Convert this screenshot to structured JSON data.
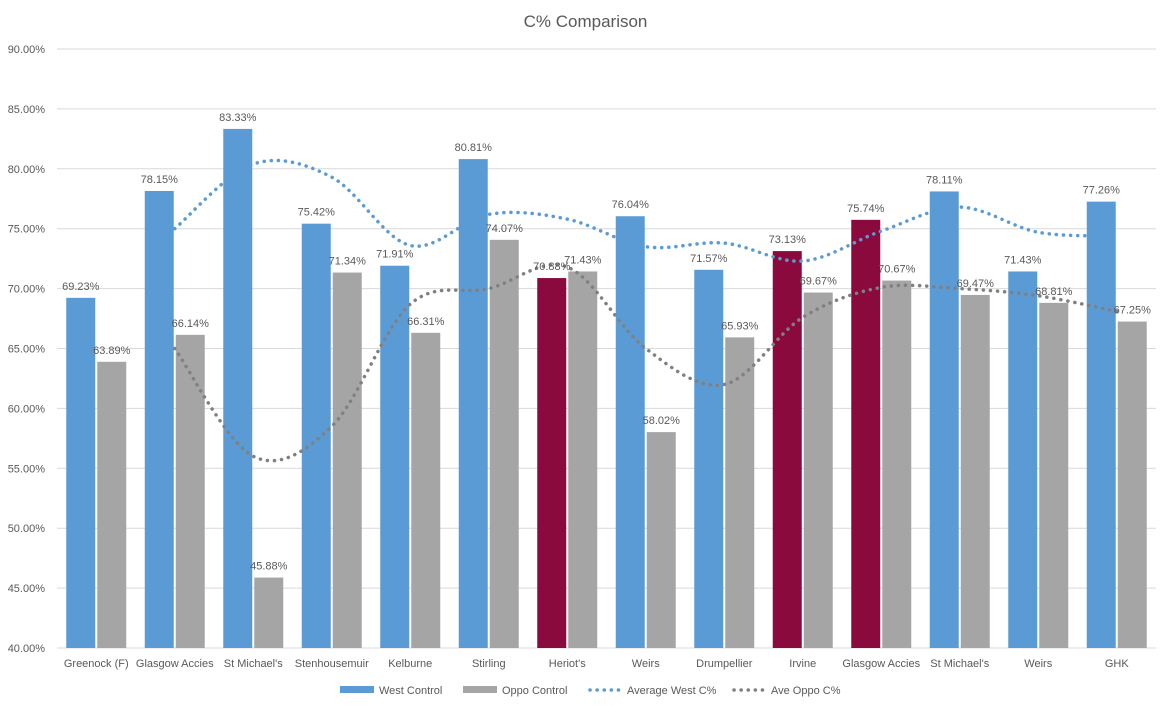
{
  "chart_data": {
    "type": "bar",
    "title": "C% Comparison",
    "xlabel": "",
    "ylabel": "",
    "ylim": [
      40,
      90
    ],
    "yticks": [
      "40.00%",
      "45.00%",
      "50.00%",
      "55.00%",
      "60.00%",
      "65.00%",
      "70.00%",
      "75.00%",
      "80.00%",
      "85.00%",
      "90.00%"
    ],
    "grid": true,
    "legend_position": "bottom",
    "categories": [
      "Greenock (F)",
      "Glasgow Accies",
      "St Michael's",
      "Stenhousemuir",
      "Kelburne",
      "Stirling",
      "Heriot's",
      "Weirs",
      "Drumpellier",
      "Irvine",
      "Glasgow Accies",
      "St Michael's",
      "Weirs",
      "GHK"
    ],
    "series": [
      {
        "name": "West Control",
        "kind": "bar",
        "color": "#5b9bd5",
        "values": [
          69.23,
          78.15,
          83.33,
          75.42,
          71.91,
          80.81,
          70.88,
          76.04,
          71.57,
          73.13,
          75.74,
          78.11,
          71.43,
          77.26
        ],
        "labels": [
          "69.23%",
          "78.15%",
          "83.33%",
          "75.42%",
          "71.91%",
          "80.81%",
          "70.88%",
          "76.04%",
          "71.57%",
          "73.13%",
          "75.74%",
          "78.11%",
          "71.43%",
          "77.26%"
        ],
        "highlight_color": "#8b0a3e",
        "highlight_indices": [
          6,
          9,
          10
        ]
      },
      {
        "name": "Oppo Control",
        "kind": "bar",
        "color": "#a5a5a5",
        "values": [
          63.89,
          66.14,
          45.88,
          71.34,
          66.31,
          74.07,
          71.43,
          58.02,
          65.93,
          69.67,
          70.67,
          69.47,
          68.81,
          67.25
        ],
        "labels": [
          "63.89%",
          "66.14%",
          "45.88%",
          "71.34%",
          "66.31%",
          "74.07%",
          "71.43%",
          "58.02%",
          "65.93%",
          "69.67%",
          "70.67%",
          "69.47%",
          "68.81%",
          "67.25%"
        ]
      },
      {
        "name": "Average West C%",
        "kind": "line-dotted",
        "color": "#5b9bd5",
        "values": [
          null,
          75.0,
          80.4,
          79.3,
          73.6,
          76.2,
          75.8,
          73.5,
          73.8,
          72.3,
          74.8,
          76.8,
          74.7,
          74.4
        ]
      },
      {
        "name": "Ave Oppo C%",
        "kind": "line-dotted",
        "color": "#808080",
        "values": [
          null,
          65.0,
          56.0,
          58.5,
          68.7,
          70.0,
          71.8,
          65.0,
          62.0,
          67.6,
          70.1,
          70.0,
          69.4,
          68.1
        ]
      }
    ]
  }
}
